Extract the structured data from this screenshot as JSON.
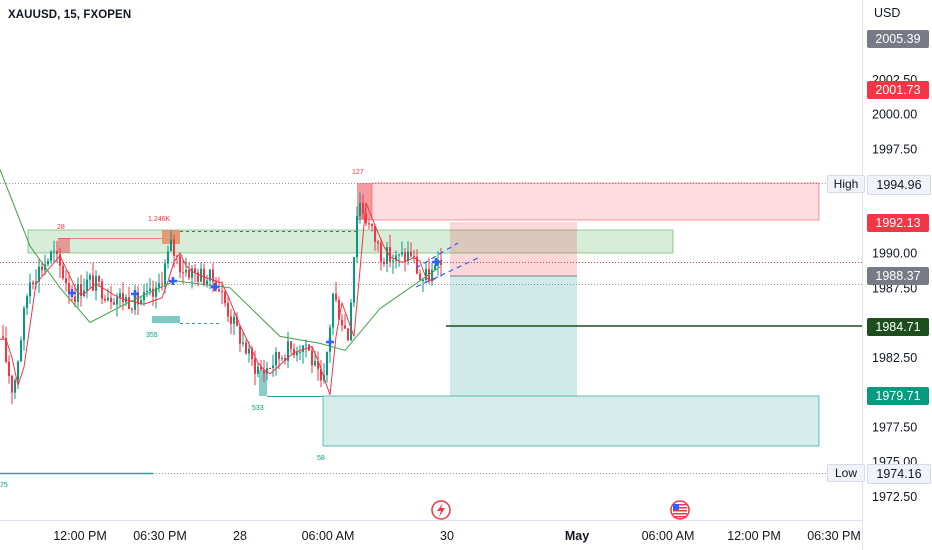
{
  "symbol_line": "XAUUSD, 15, FXOPEN",
  "currency": "USD",
  "price_axis": {
    "labels": [
      {
        "text": "2002.50",
        "value": 2002.5
      },
      {
        "text": "2000.00",
        "value": 2000.0
      },
      {
        "text": "1997.50",
        "value": 1997.5
      },
      {
        "text": "1990.00",
        "value": 1990.0
      },
      {
        "text": "1987.50",
        "value": 1987.5
      },
      {
        "text": "1982.50",
        "value": 1982.5
      },
      {
        "text": "1977.50",
        "value": 1977.5
      },
      {
        "text": "1975.00",
        "value": 1975.0
      },
      {
        "text": "1972.50",
        "value": 1972.5
      }
    ]
  },
  "price_tags": [
    {
      "id": "current",
      "text": "2005.39",
      "value": 2005.39,
      "bg": "#787b86",
      "fg": "#ffffff"
    },
    {
      "id": "red-top",
      "text": "2001.73",
      "value": 2001.73,
      "bg": "#f23645",
      "fg": "#ffffff"
    },
    {
      "id": "high",
      "text": "1994.96",
      "value": 1994.96,
      "bg": "#f0f3fa",
      "fg": "#131722"
    },
    {
      "id": "stop",
      "text": "1992.13",
      "value": 1992.13,
      "bg": "#f23645",
      "fg": "#ffffff"
    },
    {
      "id": "entry",
      "text": "1988.37",
      "value": 1988.37,
      "bg": "#787b86",
      "fg": "#ffffff"
    },
    {
      "id": "green-line",
      "text": "1984.71",
      "value": 1984.71,
      "bg": "#1e4d1e",
      "fg": "#ffffff"
    },
    {
      "id": "target",
      "text": "1979.71",
      "value": 1979.71,
      "bg": "#089981",
      "fg": "#ffffff"
    },
    {
      "id": "low",
      "text": "1974.16",
      "value": 1974.16,
      "bg": "#f0f3fa",
      "fg": "#131722"
    }
  ],
  "level_labels": {
    "high": "High",
    "low": "Low"
  },
  "time_axis": {
    "labels": [
      {
        "text": "12:00 PM",
        "bold": false
      },
      {
        "text": "06:30 PM",
        "bold": false
      },
      {
        "text": "28",
        "bold": false
      },
      {
        "text": "06:00 AM",
        "bold": false
      },
      {
        "text": "30",
        "bold": false
      },
      {
        "text": "May",
        "bold": true
      },
      {
        "text": "06:00 AM",
        "bold": false
      },
      {
        "text": "12:00 PM",
        "bold": false
      },
      {
        "text": "06:30 PM",
        "bold": false
      }
    ]
  },
  "annotations": {
    "swing_labels": [
      "28",
      "1.246K",
      "127",
      "355",
      "533",
      "58",
      "75"
    ]
  },
  "colors": {
    "bull": "#089981",
    "bear": "#f23645",
    "supply_zone": "#f23645",
    "demand_zone": "#4caf50",
    "target_zone": "#26a69a",
    "ma_fast": "#f23645",
    "ma_slow": "#43a047",
    "cross": "#2962ff"
  },
  "icons": [
    "lightning-icon",
    "us-flag-icon"
  ]
}
